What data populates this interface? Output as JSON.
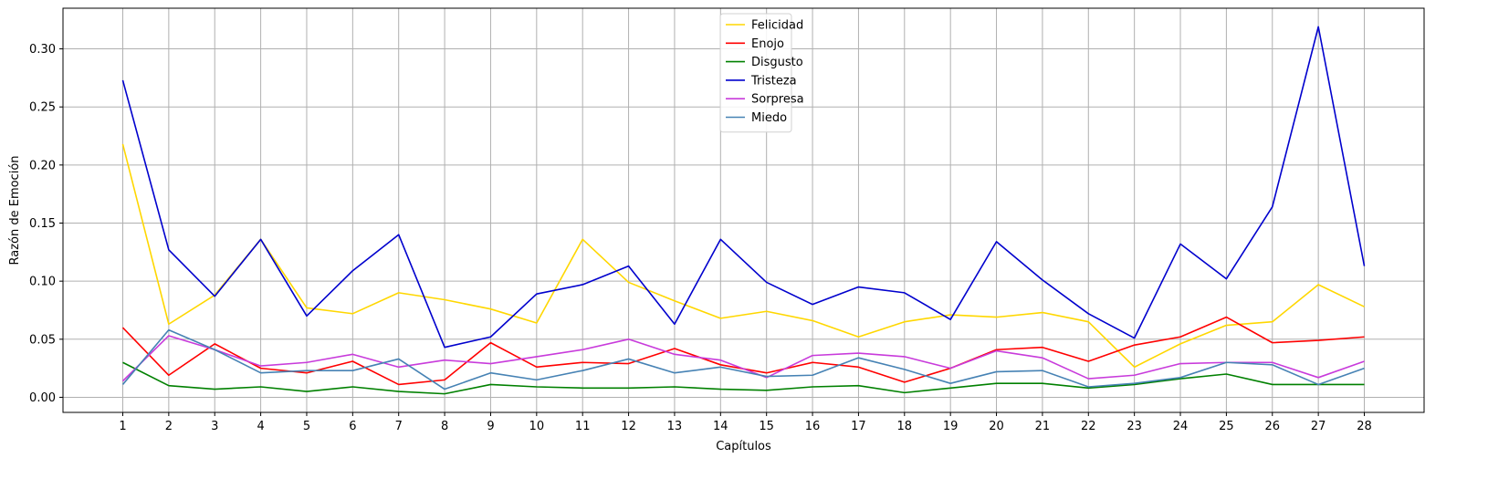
{
  "chart_data": {
    "type": "line",
    "title": "",
    "xlabel": "Capítulos",
    "ylabel": "Razón de Emoción",
    "x": [
      1,
      2,
      3,
      4,
      5,
      6,
      7,
      8,
      9,
      10,
      11,
      12,
      13,
      14,
      15,
      16,
      17,
      18,
      19,
      20,
      21,
      22,
      23,
      24,
      25,
      26,
      27,
      28
    ],
    "xlim": [
      -0.3,
      29.3
    ],
    "ylim": [
      -0.013,
      0.335
    ],
    "yticks": [
      0.0,
      0.05,
      0.1,
      0.15,
      0.2,
      0.25,
      0.3
    ],
    "ytick_labels": [
      "0.00",
      "0.05",
      "0.10",
      "0.15",
      "0.20",
      "0.25",
      "0.30"
    ],
    "grid": true,
    "legend_position": "top-center",
    "series": [
      {
        "name": "Felicidad",
        "color": "#ffd700",
        "values": [
          0.218,
          0.063,
          0.088,
          0.136,
          0.077,
          0.072,
          0.09,
          0.084,
          0.076,
          0.064,
          0.136,
          0.099,
          0.083,
          0.068,
          0.074,
          0.066,
          0.052,
          0.065,
          0.071,
          0.069,
          0.073,
          0.065,
          0.026,
          0.046,
          0.062,
          0.065,
          0.097,
          0.078
        ]
      },
      {
        "name": "Enojo",
        "color": "#ff0000",
        "values": [
          0.06,
          0.019,
          0.046,
          0.025,
          0.021,
          0.031,
          0.011,
          0.015,
          0.047,
          0.026,
          0.03,
          0.029,
          0.042,
          0.028,
          0.021,
          0.03,
          0.026,
          0.013,
          0.025,
          0.041,
          0.043,
          0.031,
          0.045,
          0.052,
          0.069,
          0.047,
          0.049,
          0.052
        ]
      },
      {
        "name": "Disgusto",
        "color": "#008000",
        "values": [
          0.03,
          0.01,
          0.007,
          0.009,
          0.005,
          0.009,
          0.005,
          0.003,
          0.011,
          0.009,
          0.008,
          0.008,
          0.009,
          0.007,
          0.006,
          0.009,
          0.01,
          0.004,
          0.008,
          0.012,
          0.012,
          0.008,
          0.011,
          0.016,
          0.02,
          0.011,
          0.011,
          0.011
        ]
      },
      {
        "name": "Tristeza",
        "color": "#0000cd",
        "values": [
          0.273,
          0.127,
          0.087,
          0.136,
          0.07,
          0.109,
          0.14,
          0.043,
          0.052,
          0.089,
          0.097,
          0.113,
          0.063,
          0.136,
          0.099,
          0.08,
          0.095,
          0.09,
          0.067,
          0.134,
          0.101,
          0.072,
          0.051,
          0.132,
          0.102,
          0.164,
          0.319,
          0.113
        ]
      },
      {
        "name": "Sorpresa",
        "color": "#c83bdb",
        "values": [
          0.014,
          0.053,
          0.041,
          0.027,
          0.03,
          0.037,
          0.026,
          0.032,
          0.029,
          0.035,
          0.041,
          0.05,
          0.037,
          0.032,
          0.017,
          0.036,
          0.038,
          0.035,
          0.025,
          0.04,
          0.034,
          0.016,
          0.019,
          0.029,
          0.03,
          0.03,
          0.017,
          0.031
        ]
      },
      {
        "name": "Miedo",
        "color": "#4682b4",
        "values": [
          0.011,
          0.058,
          0.041,
          0.021,
          0.023,
          0.023,
          0.033,
          0.007,
          0.021,
          0.015,
          0.023,
          0.033,
          0.021,
          0.026,
          0.018,
          0.019,
          0.034,
          0.024,
          0.012,
          0.022,
          0.023,
          0.009,
          0.012,
          0.017,
          0.03,
          0.028,
          0.011,
          0.025
        ]
      }
    ]
  }
}
